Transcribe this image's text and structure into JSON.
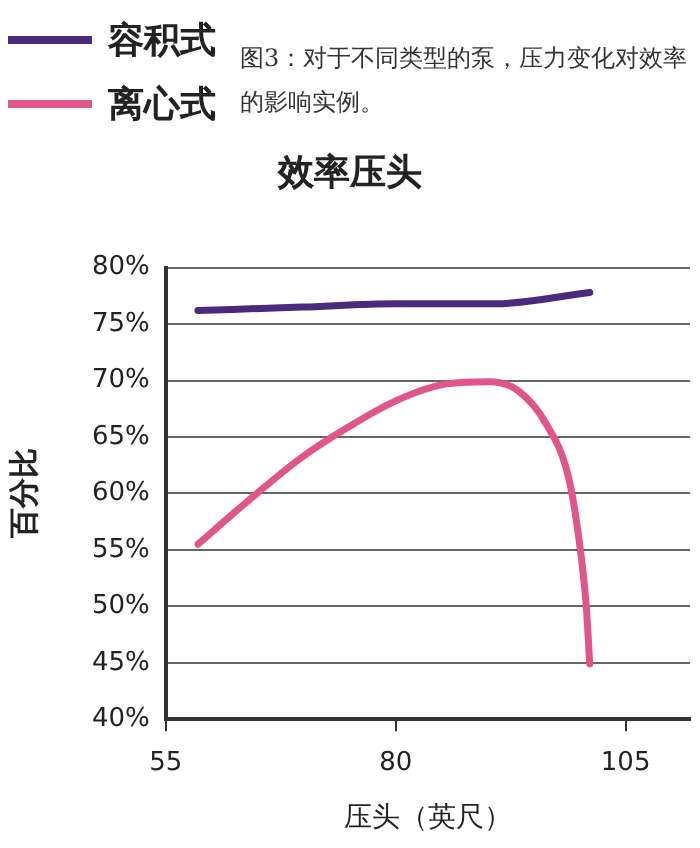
{
  "chart_data": {
    "type": "line",
    "title": "效率压头",
    "xlabel": "压头（英尺）",
    "ylabel": "百分比",
    "annotations": [
      "图3：对于不同类型的泵，压力变化对效率的影响实例。"
    ],
    "series": [
      {
        "name": "容积式",
        "color": "#4b2a7e",
        "x": [
          58.5,
          69.8,
          80,
          90.9,
          101.1
        ],
        "values": [
          76.2,
          76.5,
          76.8,
          76.8,
          77.8
        ]
      },
      {
        "name": "离心式",
        "color": "#e0558a",
        "x": [
          58.5,
          63.6,
          69.8,
          74.5,
          80,
          85.5,
          90.2,
          93.3,
          96.4,
          98.8,
          99.9,
          100.7,
          101.1
        ],
        "values": [
          55.5,
          59.1,
          63.2,
          65.7,
          68.2,
          69.7,
          69.9,
          69.1,
          66.1,
          61.4,
          56.1,
          50.2,
          44.9
        ]
      }
    ],
    "xlim": [
      55,
      112
    ],
    "xticks": [
      55,
      80,
      105
    ],
    "ylim": [
      40,
      80
    ],
    "yticks": [
      {
        "value": 40,
        "label": "40%"
      },
      {
        "value": 45,
        "label": "45%"
      },
      {
        "value": 50,
        "label": "50%"
      },
      {
        "value": 55,
        "label": "55%"
      },
      {
        "value": 60,
        "label": "60%"
      },
      {
        "value": 65,
        "label": "65%"
      },
      {
        "value": 70,
        "label": "70%"
      },
      {
        "value": 75,
        "label": "75%"
      },
      {
        "value": 80,
        "label": "80%"
      }
    ],
    "grid": "y",
    "legend": "top left",
    "marker": "none",
    "line_style": "solid"
  }
}
